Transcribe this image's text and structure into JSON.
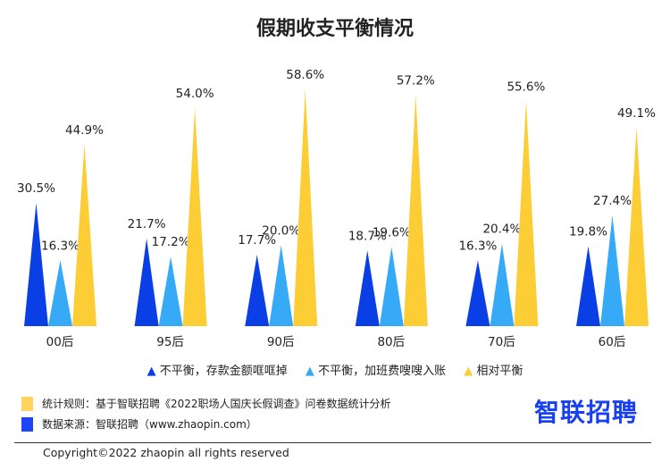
{
  "chart_data": {
    "type": "bar",
    "title": "假期收支平衡情况",
    "categories": [
      "00后",
      "95后",
      "90后",
      "80后",
      "70后",
      "60后"
    ],
    "series": [
      {
        "name": "不平衡，存款金额哐哐掉",
        "color": "#0b3fe6",
        "values": [
          30.5,
          21.7,
          17.7,
          18.7,
          16.3,
          19.8
        ]
      },
      {
        "name": "不平衡，加班费嗖嗖入账",
        "color": "#36aaf6",
        "values": [
          16.3,
          17.2,
          20.0,
          19.6,
          20.4,
          27.4
        ]
      },
      {
        "name": "相对平衡",
        "color": "#fccd34",
        "values": [
          44.9,
          54.0,
          58.6,
          57.2,
          55.6,
          49.1
        ]
      }
    ],
    "ylim": [
      0,
      60
    ],
    "value_suffix": "%",
    "legend_position": "bottom"
  },
  "notes": [
    {
      "text": "统计规则：基于智联招聘《2022职场人国庆长假调查》问卷数据统计分析",
      "color": "#ffd45e"
    },
    {
      "text": "数据来源：智联招聘（www.zhaopin.com）",
      "color": "#1e45f5"
    }
  ],
  "logo": "智联招聘",
  "copyright": "Copyright©2022 zhaopin all rights reserved"
}
